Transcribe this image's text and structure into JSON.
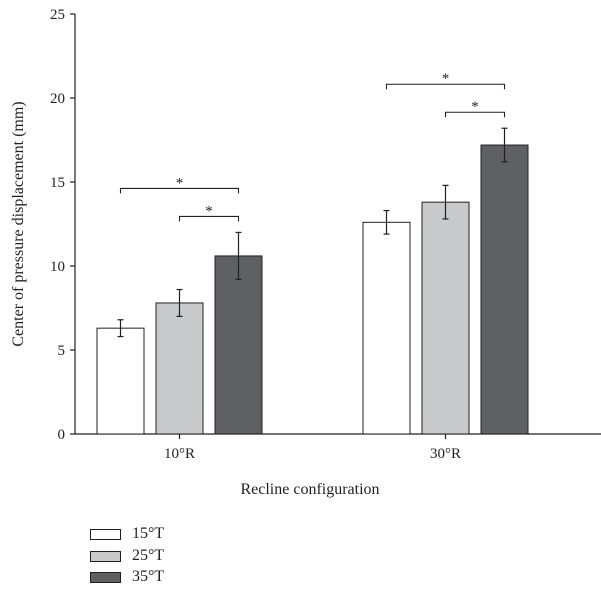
{
  "chart_data": {
    "type": "bar",
    "categories": [
      "10°R",
      "30°R"
    ],
    "xlabel": "Recline configuration",
    "ylabel": "Center of pressure displacement (mm)",
    "ylim": [
      0,
      25
    ],
    "yticks": [
      0,
      5,
      10,
      15,
      20,
      25
    ],
    "grid": false,
    "legend_position": "bottom-left",
    "series": [
      {
        "name": "15°T",
        "color": "#ffffff",
        "values": [
          6.3,
          12.6
        ],
        "errors": [
          0.5,
          0.7
        ]
      },
      {
        "name": "25°T",
        "color": "#c8c9cb",
        "values": [
          7.8,
          13.8
        ],
        "errors": [
          0.8,
          1.0
        ]
      },
      {
        "name": "35°T",
        "color": "#5f6062",
        "values": [
          10.6,
          17.2
        ],
        "errors": [
          1.4,
          1.0
        ]
      }
    ],
    "significance": [
      {
        "category": 0,
        "from_series": 0,
        "to_series": 2,
        "label": "*"
      },
      {
        "category": 0,
        "from_series": 1,
        "to_series": 2,
        "label": "*"
      },
      {
        "category": 1,
        "from_series": 0,
        "to_series": 2,
        "label": "*"
      },
      {
        "category": 1,
        "from_series": 1,
        "to_series": 2,
        "label": "*"
      }
    ]
  }
}
